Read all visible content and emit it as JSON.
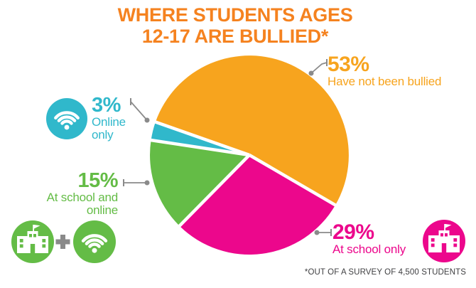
{
  "title": {
    "line1": "WHERE STUDENTS AGES",
    "line2": "12-17 ARE BULLIED*"
  },
  "footnote": "*OUT OF A SURVEY OF 4,500 STUDENTS",
  "colors": {
    "title_orange": "#F5821F",
    "orange": "#F7A41E",
    "magenta": "#EC078C",
    "green": "#64BC46",
    "cyan": "#30B8CB",
    "gray": "#8A8A8A",
    "footnote": "#3F3F41",
    "white": "#FFFFFF"
  },
  "chart_data": {
    "type": "pie",
    "title": "Where students ages 12-17 are bullied (out of a survey of 4,500 students)",
    "units": "percent",
    "rotation_deg": 289.4,
    "slices": [
      {
        "label": "Have not been bullied",
        "value": 53,
        "color": "orange"
      },
      {
        "label": "At school only",
        "value": 29,
        "color": "magenta"
      },
      {
        "label": "At school and online",
        "value": 15,
        "color": "green"
      },
      {
        "label": "Online only",
        "value": 3,
        "color": "cyan"
      }
    ],
    "legend_position": "callouts-around-pie",
    "grid": false
  },
  "labels": {
    "not_bullied": {
      "pct": "53%",
      "text": "Have not been bullied"
    },
    "online_only": {
      "pct": "3%",
      "line1": "Online",
      "line2": "only"
    },
    "school_online": {
      "pct": "15%",
      "line1": "At school and",
      "line2": "online"
    },
    "school_only": {
      "pct": "29%",
      "text": "At school only"
    }
  },
  "icons": {
    "online_only": "wifi-icon",
    "school_and_online": "school-icon + wifi-icon",
    "school_only": "school-icon"
  }
}
